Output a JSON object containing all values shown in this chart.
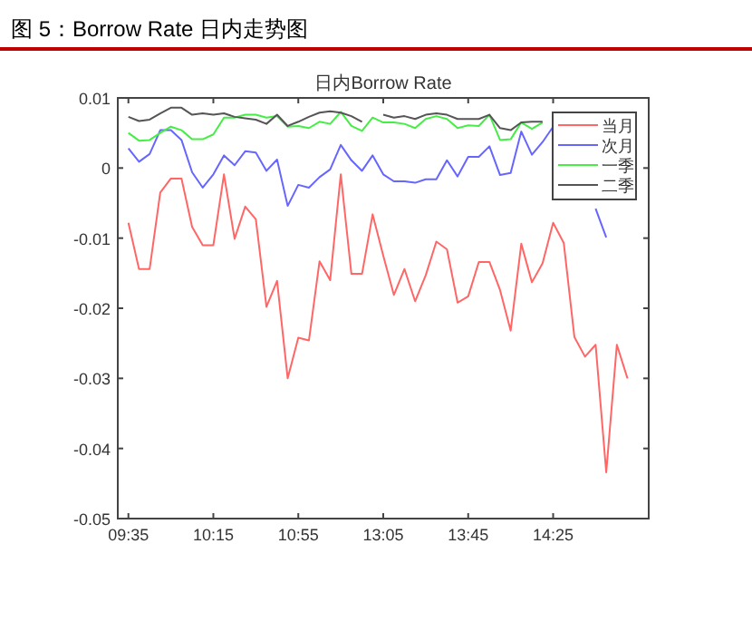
{
  "chart_data": {
    "type": "line",
    "title": "图 5：Borrow Rate 日内走势图",
    "subtitle": "日内Borrow Rate",
    "categories": [
      "09:35",
      null,
      null,
      null,
      null,
      null,
      null,
      null,
      "10:15",
      null,
      null,
      null,
      null,
      null,
      null,
      null,
      "10:55",
      null,
      null,
      null,
      null,
      null,
      null,
      null,
      "13:05",
      null,
      null,
      null,
      null,
      null,
      null,
      null,
      "13:45",
      null,
      null,
      null,
      null,
      null,
      null,
      null,
      "14:25",
      null,
      null,
      null,
      null,
      null,
      null,
      null
    ],
    "series": [
      {
        "name": "当月",
        "color": "#ff6666",
        "values": [
          -0.0078,
          -0.0144,
          -0.0144,
          -0.0035,
          -0.0015,
          -0.0015,
          -0.0084,
          -0.011,
          -0.011,
          -0.0009,
          -0.0101,
          -0.0055,
          -0.0073,
          -0.0198,
          -0.0161,
          -0.03,
          -0.0242,
          -0.0246,
          -0.0133,
          -0.016,
          -0.0009,
          -0.0151,
          -0.0151,
          -0.0066,
          -0.0125,
          -0.0181,
          -0.0144,
          -0.019,
          -0.0153,
          -0.0105,
          -0.0116,
          -0.0192,
          -0.0183,
          -0.0134,
          -0.0134,
          -0.0174,
          -0.0232,
          -0.0108,
          -0.0163,
          -0.0136,
          -0.0078,
          -0.0107,
          -0.0241,
          -0.0269,
          -0.0252,
          -0.0434,
          -0.0252,
          -0.03
        ]
      },
      {
        "name": "次月",
        "color": "#6666ff",
        "values": [
          0.0028,
          0.0009,
          0.002,
          0.0054,
          0.0054,
          0.004,
          -0.0006,
          -0.0028,
          -0.0009,
          0.0018,
          0.0004,
          0.0024,
          0.0022,
          -0.0004,
          0.0012,
          -0.0054,
          -0.0024,
          -0.0028,
          -0.0013,
          -0.0002,
          0.0033,
          0.0011,
          -0.0004,
          0.0018,
          -0.0009,
          -0.0019,
          -0.0019,
          -0.0021,
          -0.0016,
          -0.0016,
          0.0011,
          -0.0012,
          0.0016,
          0.0016,
          0.0031,
          -0.001,
          -0.0007,
          0.0052,
          0.0019,
          0.0037,
          0.0059,
          null,
          null,
          null,
          -0.0058,
          -0.0099,
          null,
          null
        ]
      },
      {
        "name": "一季",
        "color": "#44ee44",
        "values": [
          0.005,
          0.0039,
          0.004,
          0.005,
          0.0059,
          0.0054,
          0.0041,
          0.0041,
          0.0048,
          0.0072,
          0.0072,
          0.0076,
          0.0076,
          0.0072,
          0.0074,
          0.0059,
          0.006,
          0.0057,
          0.0066,
          0.0063,
          0.008,
          0.006,
          0.0053,
          0.0072,
          0.0065,
          0.0065,
          0.0063,
          0.0057,
          0.007,
          0.0074,
          0.007,
          0.0057,
          0.0061,
          0.006,
          0.0076,
          0.004,
          0.0041,
          0.0065,
          0.0056,
          0.0065,
          null,
          null,
          null,
          null,
          null,
          null,
          null,
          null
        ]
      },
      {
        "name": "二季",
        "color": "#555555",
        "values": [
          0.0073,
          0.0067,
          0.0069,
          0.0078,
          0.0086,
          0.0086,
          0.0076,
          0.0078,
          0.0076,
          0.0078,
          0.0073,
          0.0071,
          0.0069,
          0.0063,
          0.0076,
          0.006,
          0.0066,
          0.0073,
          0.0079,
          0.0081,
          0.0079,
          0.0074,
          0.0066,
          null,
          0.0076,
          0.0072,
          0.0074,
          0.007,
          0.0076,
          0.0078,
          0.0076,
          0.007,
          0.007,
          0.007,
          0.0076,
          0.0057,
          0.0054,
          0.0065,
          0.0066,
          0.0066,
          null,
          null,
          null,
          null,
          null,
          null,
          null,
          null
        ]
      }
    ],
    "ylim": [
      -0.05,
      0.01
    ],
    "yticks": [
      0.01,
      0,
      -0.01,
      -0.02,
      -0.03,
      -0.04,
      -0.05
    ],
    "legend": "top right",
    "grid": false
  }
}
